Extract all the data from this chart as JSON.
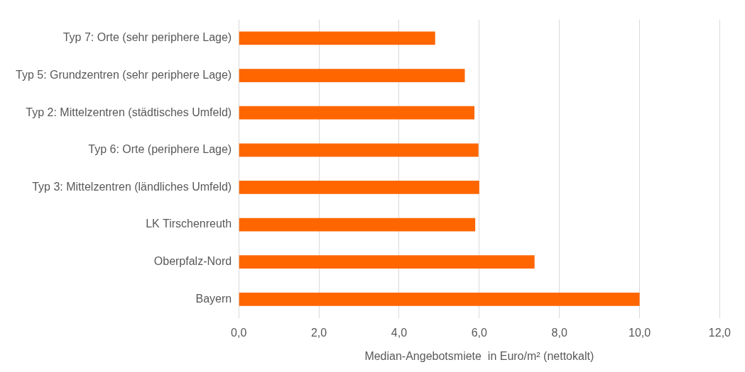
{
  "chart_data": {
    "type": "bar",
    "orientation": "horizontal",
    "xlabel": "Median-Angebotsmiete  in Euro/m² (nettokalt)",
    "categories": [
      "Typ 7: Orte (sehr periphere Lage)",
      "Typ 5: Grundzentren (sehr periphere Lage)",
      "Typ 2: Mittelzentren (städtisches Umfeld)",
      "Typ 6: Orte (periphere Lage)",
      "Typ 3: Mittelzentren (ländliches Umfeld)",
      "LK Tirschenreuth",
      "Oberpfalz-Nord",
      "Bayern"
    ],
    "values": [
      4.9,
      5.64,
      5.88,
      5.98,
      6.0,
      5.9,
      7.38,
      10.0
    ],
    "color": "#ff6600",
    "xlim": [
      0,
      12
    ],
    "xticks": [
      {
        "value": 0,
        "label": "0,0"
      },
      {
        "value": 2,
        "label": "2,0"
      },
      {
        "value": 4,
        "label": "4,0"
      },
      {
        "value": 6,
        "label": "6,0"
      },
      {
        "value": 8,
        "label": "8,0"
      },
      {
        "value": 10,
        "label": "10,0"
      },
      {
        "value": 12,
        "label": "12,0"
      }
    ],
    "grid": "x",
    "legend": false
  }
}
